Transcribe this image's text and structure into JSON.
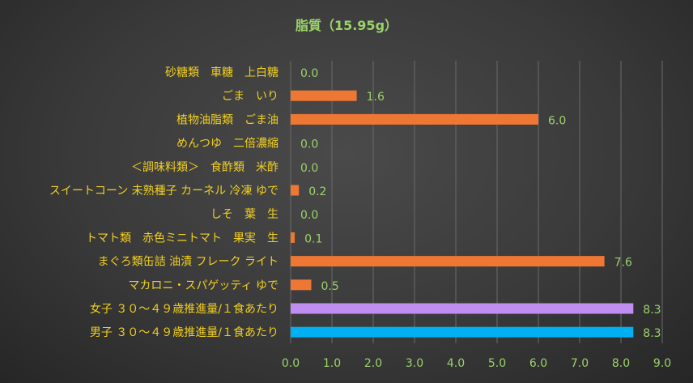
{
  "chart_data": {
    "type": "bar",
    "orientation": "horizontal",
    "title": "脂質（15.95g）",
    "xlabel": "",
    "ylabel": "",
    "xlim": [
      0,
      9
    ],
    "ticks": [
      "0.0",
      "1.0",
      "2.0",
      "3.0",
      "4.0",
      "5.0",
      "6.0",
      "7.0",
      "8.0",
      "9.0"
    ],
    "grid": true,
    "categories": [
      "砂糖類　車糖　上白糖",
      "ごま　いり",
      "植物油脂類　ごま油",
      "めんつゆ　二倍濃縮",
      "＜調味料類＞　食酢類　米酢",
      "スイートコーン 未熟種子 カーネル 冷凍 ゆで",
      "しそ　葉　生",
      "トマト類　赤色ミニトマト　果実　生",
      "まぐろ類缶詰 油漬 フレーク ライト",
      "マカロニ・スパゲッティ ゆで",
      "女子 ３０～４９歳推進量/１食あたり",
      "男子 ３０～４９歳推進量/１食あたり"
    ],
    "values": [
      0.0,
      1.6,
      6.0,
      0.0,
      0.0,
      0.2,
      0.0,
      0.1,
      7.6,
      0.5,
      8.3,
      8.3
    ],
    "value_labels": [
      "0.0",
      "1.6",
      "6.0",
      "0.0",
      "0.0",
      "0.2",
      "0.0",
      "0.1",
      "7.6",
      "0.5",
      "8.3",
      "8.3"
    ],
    "colors": [
      "#ee7733",
      "#ee7733",
      "#ee7733",
      "#ee7733",
      "#ee7733",
      "#ee7733",
      "#ee7733",
      "#ee7733",
      "#ee7733",
      "#ee7733",
      "#c08ef0",
      "#00b0f0"
    ]
  }
}
